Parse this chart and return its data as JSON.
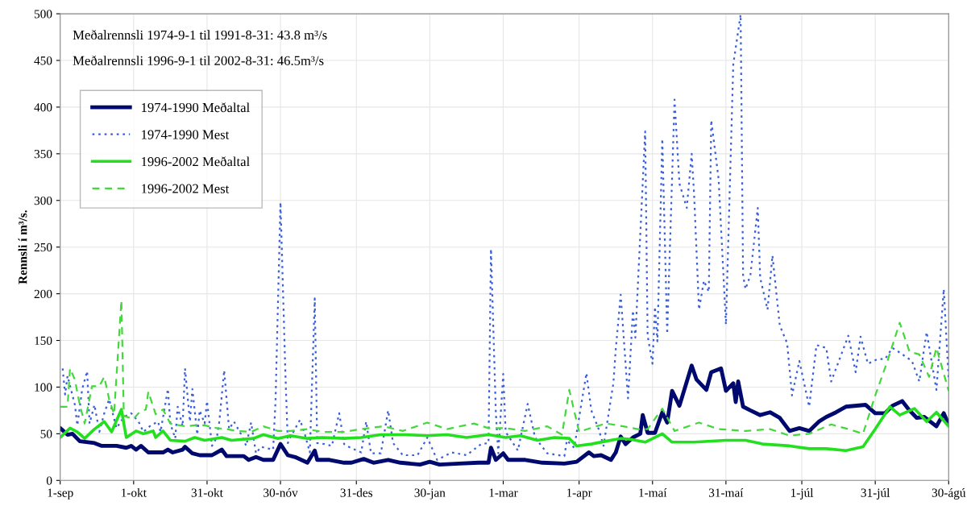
{
  "chart_data": {
    "type": "line",
    "ylabel": "Rennsli í m³/s.",
    "annotations": [
      "Meðalrennsli 1974-9-1 til 1991-8-31: 43.8 m³/s",
      "Meðalrennsli 1996-9-1 til 2002-8-31: 46.5m³/s"
    ],
    "xlim": [
      "2001-09-01",
      "2002-08-30"
    ],
    "xticks": [
      {
        "value": "2001-09-01",
        "label": "1-sep"
      },
      {
        "value": "2001-10-01",
        "label": "1-okt"
      },
      {
        "value": "2001-10-31",
        "label": "31-okt"
      },
      {
        "value": "2001-11-30",
        "label": "30-nóv"
      },
      {
        "value": "2001-12-31",
        "label": "31-des"
      },
      {
        "value": "2002-01-30",
        "label": "30-jan"
      },
      {
        "value": "2002-03-01",
        "label": "1-mar"
      },
      {
        "value": "2002-04-01",
        "label": "1-apr"
      },
      {
        "value": "2002-05-01",
        "label": "1-maí"
      },
      {
        "value": "2002-05-31",
        "label": "31-maí"
      },
      {
        "value": "2002-07-01",
        "label": "1-júl"
      },
      {
        "value": "2002-07-31",
        "label": "31-júl"
      },
      {
        "value": "2002-08-30",
        "label": "30-ágú"
      }
    ],
    "ylim": [
      0,
      500
    ],
    "yticks": [
      0,
      50,
      100,
      150,
      200,
      250,
      300,
      350,
      400,
      450,
      500
    ],
    "grid": true,
    "legend": "top left",
    "series": [
      {
        "name": "1974-1990 Meðaltal",
        "color": "#000a6e",
        "line_style": "solid",
        "x": [
          "2001-09-01",
          "2001-09-04",
          "2001-09-06",
          "2001-09-09",
          "2001-09-15",
          "2001-09-18",
          "2001-09-24",
          "2001-09-28",
          "2001-09-30",
          "2001-10-02",
          "2001-10-04",
          "2001-10-07",
          "2001-10-13",
          "2001-10-15",
          "2001-10-17",
          "2001-10-21",
          "2001-10-22",
          "2001-10-25",
          "2001-10-28",
          "2001-11-02",
          "2001-11-04",
          "2001-11-06",
          "2001-11-08",
          "2001-11-15",
          "2001-11-17",
          "2001-11-20",
          "2001-11-23",
          "2001-11-27",
          "2001-11-30",
          "2001-12-03",
          "2001-12-06",
          "2001-12-11",
          "2001-12-14",
          "2001-12-15",
          "2001-12-20",
          "2001-12-26",
          "2001-12-29",
          "2002-01-03",
          "2002-01-07",
          "2002-01-13",
          "2002-01-18",
          "2002-01-26",
          "2002-01-30",
          "2002-02-03",
          "2002-02-11",
          "2002-02-19",
          "2002-02-23",
          "2002-02-24",
          "2002-02-26",
          "2002-03-01",
          "2002-03-03",
          "2002-03-10",
          "2002-03-17",
          "2002-03-26",
          "2002-03-31",
          "2002-04-05",
          "2002-04-07",
          "2002-04-10",
          "2002-04-14",
          "2002-04-16",
          "2002-04-18",
          "2002-04-20",
          "2002-04-23",
          "2002-04-26",
          "2002-04-27",
          "2002-04-29",
          "2002-05-02",
          "2002-05-05",
          "2002-05-07",
          "2002-05-09",
          "2002-05-12",
          "2002-05-17",
          "2002-05-19",
          "2002-05-23",
          "2002-05-25",
          "2002-05-29",
          "2002-05-31",
          "2002-06-03",
          "2002-06-04",
          "2002-06-05",
          "2002-06-07",
          "2002-06-10",
          "2002-06-14",
          "2002-06-18",
          "2002-06-22",
          "2002-06-26",
          "2002-06-30",
          "2002-07-04",
          "2002-07-08",
          "2002-07-11",
          "2002-07-15",
          "2002-07-19",
          "2002-07-27",
          "2002-07-31",
          "2002-08-04",
          "2002-08-07",
          "2002-08-11",
          "2002-08-14",
          "2002-08-17",
          "2002-08-20",
          "2002-08-25",
          "2002-08-28",
          "2002-08-30"
        ],
        "values": [
          56,
          49,
          50,
          42,
          40,
          37,
          37,
          35,
          37,
          33,
          37,
          30,
          30,
          33,
          30,
          33,
          36,
          29,
          27,
          27,
          30,
          33,
          26,
          26,
          22,
          25,
          22,
          22,
          39,
          27,
          25,
          19,
          32,
          22,
          22,
          19,
          19,
          23,
          19,
          22,
          19,
          17,
          20,
          17,
          18,
          19,
          19,
          35,
          22,
          29,
          22,
          22,
          19,
          18,
          20,
          30,
          26,
          27,
          22,
          30,
          47,
          39,
          46,
          50,
          70,
          51,
          51,
          73,
          62,
          96,
          80,
          123,
          108,
          97,
          116,
          120,
          96,
          104,
          84,
          106,
          79,
          75,
          70,
          73,
          67,
          53,
          56,
          53,
          63,
          68,
          73,
          79,
          81,
          72,
          72,
          80,
          85,
          75,
          67,
          68,
          58,
          72,
          60
        ]
      },
      {
        "name": "1974-1990 Mest",
        "color": "#3a5fd6",
        "line_style": "dotted",
        "x": [
          "2001-09-02",
          "2001-09-03",
          "2001-09-04",
          "2001-09-07",
          "2001-09-08",
          "2001-09-10",
          "2001-09-12",
          "2001-09-13",
          "2001-09-15",
          "2001-09-17",
          "2001-09-19",
          "2001-09-21",
          "2001-09-24",
          "2001-09-27",
          "2001-09-30",
          "2001-10-03",
          "2001-10-05",
          "2001-10-08",
          "2001-10-11",
          "2001-10-12",
          "2001-10-15",
          "2001-10-16",
          "2001-10-18",
          "2001-10-19",
          "2001-10-21",
          "2001-10-22",
          "2001-10-24",
          "2001-10-25",
          "2001-10-27",
          "2001-10-28",
          "2001-10-30",
          "2001-10-31",
          "2001-11-02",
          "2001-11-04",
          "2001-11-05",
          "2001-11-07",
          "2001-11-09",
          "2001-11-11",
          "2001-11-14",
          "2001-11-16",
          "2001-11-18",
          "2001-11-20",
          "2001-11-22",
          "2001-11-27",
          "2001-11-28",
          "2001-11-30",
          "2001-12-02",
          "2001-12-03",
          "2001-12-04",
          "2001-12-08",
          "2001-12-10",
          "2001-12-12",
          "2001-12-14",
          "2001-12-15",
          "2001-12-18",
          "2001-12-21",
          "2001-12-24",
          "2001-12-26",
          "2001-12-27",
          "2002-01-02",
          "2002-01-04",
          "2002-01-06",
          "2002-01-10",
          "2002-01-13",
          "2002-01-15",
          "2002-01-19",
          "2002-01-25",
          "2002-01-29",
          "2002-02-02",
          "2002-02-08",
          "2002-02-14",
          "2002-02-20",
          "2002-02-23",
          "2002-02-24",
          "2002-02-26",
          "2002-02-27",
          "2002-03-01",
          "2002-03-02",
          "2002-03-07",
          "2002-03-11",
          "2002-03-14",
          "2002-03-19",
          "2002-03-26",
          "2002-03-27",
          "2002-03-30",
          "2002-04-04",
          "2002-04-06",
          "2002-04-09",
          "2002-04-11",
          "2002-04-15",
          "2002-04-16",
          "2002-04-18",
          "2002-04-21",
          "2002-04-23",
          "2002-04-24",
          "2002-04-28",
          "2002-04-29",
          "2002-05-01",
          "2002-05-02",
          "2002-05-03",
          "2002-05-05",
          "2002-05-07",
          "2002-05-10",
          "2002-05-12",
          "2002-05-15",
          "2002-05-17",
          "2002-05-18",
          "2002-05-20",
          "2002-05-22",
          "2002-05-24",
          "2002-05-25",
          "2002-05-28",
          "2002-05-31",
          "2002-06-03",
          "2002-06-06",
          "2002-06-07",
          "2002-06-08",
          "2002-06-10",
          "2002-06-13",
          "2002-06-14",
          "2002-06-17",
          "2002-06-19",
          "2002-06-22",
          "2002-06-25",
          "2002-06-27",
          "2002-06-30",
          "2002-07-04",
          "2002-07-07",
          "2002-07-11",
          "2002-07-13",
          "2002-07-20",
          "2002-07-23",
          "2002-07-25",
          "2002-07-28",
          "2002-08-01",
          "2002-08-04",
          "2002-08-07",
          "2002-08-10",
          "2002-08-15",
          "2002-08-18",
          "2002-08-21",
          "2002-08-25",
          "2002-08-28",
          "2002-08-30"
        ],
        "values": [
          120,
          92,
          112,
          81,
          59,
          98,
          117,
          61,
          81,
          52,
          72,
          87,
          56,
          68,
          72,
          63,
          52,
          59,
          63,
          52,
          98,
          61,
          45,
          79,
          58,
          120,
          63,
          98,
          49,
          75,
          61,
          85,
          37,
          46,
          63,
          118,
          55,
          63,
          49,
          37,
          62,
          29,
          36,
          33,
          87,
          298,
          115,
          40,
          46,
          65,
          49,
          30,
          195,
          40,
          39,
          37,
          72,
          39,
          37,
          30,
          63,
          29,
          29,
          75,
          40,
          27,
          27,
          46,
          22,
          30,
          27,
          39,
          40,
          248,
          72,
          29,
          114,
          52,
          32,
          82,
          46,
          29,
          26,
          43,
          35,
          115,
          75,
          55,
          37,
          104,
          141,
          199,
          88,
          182,
          153,
          374,
          155,
          125,
          186,
          149,
          366,
          157,
          408,
          318,
          292,
          350,
          306,
          183,
          214,
          202,
          386,
          323,
          167,
          446,
          499,
          220,
          205,
          220,
          292,
          217,
          183,
          241,
          166,
          147,
          91,
          128,
          79,
          145,
          142,
          106,
          155,
          116,
          154,
          125,
          130,
          130,
          142,
          137,
          128,
          106,
          159,
          97,
          205,
          108
        ]
      },
      {
        "name": "1996-2002 Meðaltal",
        "color": "#22e01e",
        "line_style": "solid",
        "x": [
          "2001-09-01",
          "2001-09-05",
          "2001-09-08",
          "2001-09-11",
          "2001-09-15",
          "2001-09-19",
          "2001-09-22",
          "2001-09-26",
          "2001-09-28",
          "2001-10-02",
          "2001-10-05",
          "2001-10-09",
          "2001-10-10",
          "2001-10-13",
          "2001-10-16",
          "2001-10-22",
          "2001-10-26",
          "2001-10-30",
          "2001-11-06",
          "2001-11-10",
          "2001-11-19",
          "2001-11-23",
          "2001-11-29",
          "2001-12-04",
          "2001-12-11",
          "2001-12-17",
          "2001-12-26",
          "2002-01-02",
          "2002-01-10",
          "2002-01-20",
          "2002-01-29",
          "2002-02-06",
          "2002-02-14",
          "2002-02-23",
          "2002-03-02",
          "2002-03-08",
          "2002-03-15",
          "2002-03-22",
          "2002-03-28",
          "2002-03-31",
          "2002-04-06",
          "2002-04-12",
          "2002-04-18",
          "2002-04-22",
          "2002-04-28",
          "2002-05-05",
          "2002-05-09",
          "2002-05-18",
          "2002-05-31",
          "2002-06-08",
          "2002-06-15",
          "2002-06-26",
          "2002-07-04",
          "2002-07-11",
          "2002-07-19",
          "2002-07-26",
          "2002-07-31",
          "2002-08-06",
          "2002-08-10",
          "2002-08-16",
          "2002-08-21",
          "2002-08-25",
          "2002-08-30"
        ],
        "values": [
          46,
          56,
          52,
          45,
          55,
          63,
          52,
          76,
          46,
          53,
          50,
          53,
          46,
          53,
          43,
          42,
          46,
          43,
          46,
          43,
          45,
          49,
          45,
          48,
          45,
          46,
          45,
          46,
          49,
          49,
          48,
          49,
          46,
          49,
          46,
          48,
          43,
          46,
          45,
          37,
          39,
          42,
          45,
          44,
          41,
          50,
          41,
          41,
          43,
          43,
          39,
          37,
          34,
          34,
          32,
          36,
          55,
          79,
          70,
          77,
          63,
          73,
          58
        ]
      },
      {
        "name": "1996-2002 Mest",
        "color": "#44d83c",
        "line_style": "dashed",
        "x": [
          "2001-09-01",
          "2001-09-04",
          "2001-09-05",
          "2001-09-07",
          "2001-09-09",
          "2001-09-11",
          "2001-09-14",
          "2001-09-17",
          "2001-09-19",
          "2001-09-21",
          "2001-09-23",
          "2001-09-26",
          "2001-09-27",
          "2001-10-01",
          "2001-10-03",
          "2001-10-06",
          "2001-10-07",
          "2001-10-10",
          "2001-10-13",
          "2001-10-16",
          "2001-10-22",
          "2001-10-26",
          "2001-10-30",
          "2001-11-04",
          "2001-11-08",
          "2001-11-12",
          "2001-11-18",
          "2001-11-23",
          "2001-11-29",
          "2001-12-04",
          "2001-12-11",
          "2001-12-17",
          "2001-12-26",
          "2002-01-02",
          "2002-01-11",
          "2002-01-19",
          "2002-01-29",
          "2002-02-06",
          "2002-02-17",
          "2002-02-23",
          "2002-03-02",
          "2002-03-10",
          "2002-03-19",
          "2002-03-25",
          "2002-03-28",
          "2002-04-01",
          "2002-04-08",
          "2002-04-12",
          "2002-04-19",
          "2002-04-25",
          "2002-04-29",
          "2002-05-05",
          "2002-05-10",
          "2002-05-20",
          "2002-05-28",
          "2002-06-08",
          "2002-06-18",
          "2002-06-26",
          "2002-07-04",
          "2002-07-13",
          "2002-07-20",
          "2002-07-26",
          "2002-07-31",
          "2002-08-05",
          "2002-08-10",
          "2002-08-14",
          "2002-08-18",
          "2002-08-22",
          "2002-08-25",
          "2002-08-30"
        ],
        "values": [
          79,
          79,
          120,
          108,
          81,
          61,
          101,
          101,
          111,
          87,
          71,
          193,
          69,
          66,
          72,
          76,
          95,
          71,
          76,
          61,
          58,
          59,
          59,
          56,
          55,
          53,
          52,
          58,
          53,
          53,
          55,
          52,
          52,
          55,
          58,
          53,
          62,
          55,
          61,
          56,
          56,
          53,
          58,
          49,
          97,
          52,
          58,
          61,
          58,
          55,
          55,
          77,
          53,
          62,
          55,
          53,
          55,
          48,
          50,
          60,
          55,
          50,
          91,
          128,
          169,
          138,
          135,
          111,
          142,
          96
        ]
      }
    ]
  }
}
